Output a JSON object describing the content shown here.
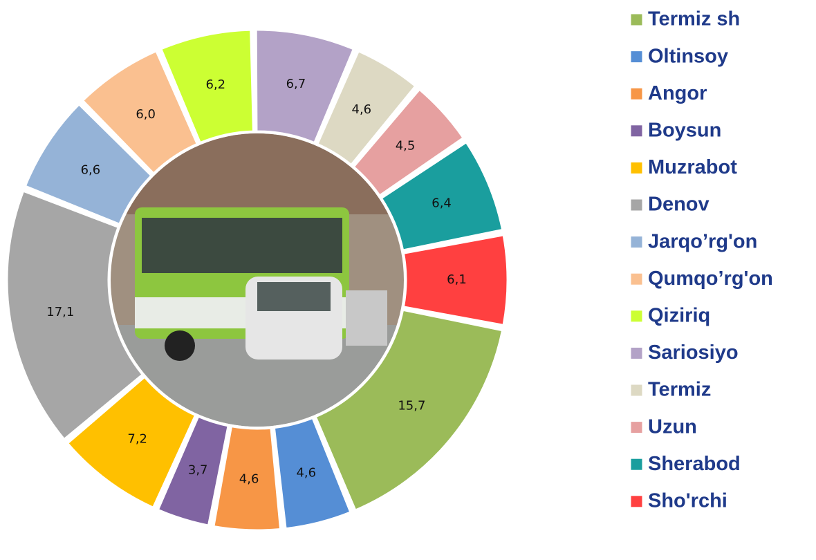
{
  "chart_data": {
    "type": "donut",
    "categories": [
      "Termiz sh",
      "Oltinsoy",
      "Angor",
      "Boysun",
      "Muzrabot",
      "Denov",
      "Jarqo’rg'on",
      "Qumqo’rg'on",
      "Qiziriq",
      "Sariosiyo",
      "Termiz",
      "Uzun",
      "Sherabod",
      "Sho'rchi"
    ],
    "values": [
      15.7,
      4.6,
      4.6,
      3.7,
      7.2,
      17.1,
      6.6,
      6.0,
      6.2,
      6.7,
      4.6,
      4.5,
      6.4,
      6.1
    ],
    "value_labels": [
      "15,7",
      "4,6",
      "4,6",
      "3,7",
      "7,2",
      "17,1",
      "6,6",
      "6,0",
      "6,2",
      "6,7",
      "4,6",
      "4,5",
      "6,4",
      "6,1"
    ],
    "colors": [
      "#9bbb59",
      "#558ed5",
      "#f79646",
      "#8064a2",
      "#ffc000",
      "#a6a6a6",
      "#95b3d7",
      "#fac090",
      "#ccff33",
      "#b3a2c7",
      "#ddd9c3",
      "#e6a0a0",
      "#1a9e9e",
      "#ff4040"
    ],
    "legend": "right"
  }
}
